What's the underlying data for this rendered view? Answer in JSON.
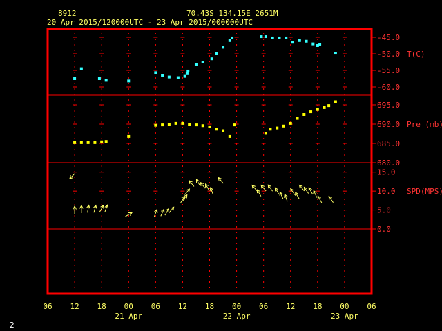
{
  "header": {
    "station_id": "8912",
    "location": "70.43S   134.15E   2651M",
    "time_range": "20 Apr 2015/120000UTC - 23 Apr 2015/000000UTC"
  },
  "page_number": "2",
  "colors": {
    "frame": "#ff0000",
    "text": "#ffff66",
    "axis_text": "#ff3333",
    "temperature": "#33ffff",
    "pressure": "#ffff00",
    "wind": "#ffff66"
  },
  "chart_data": {
    "type": "scatter",
    "x_unit": "hours since 20 Apr 06 UTC",
    "x_ticks": [
      {
        "hour": 0,
        "label": "06"
      },
      {
        "hour": 6,
        "label": "12"
      },
      {
        "hour": 12,
        "label": "18"
      },
      {
        "hour": 18,
        "label": "00"
      },
      {
        "hour": 24,
        "label": "06"
      },
      {
        "hour": 30,
        "label": "12"
      },
      {
        "hour": 36,
        "label": "18"
      },
      {
        "hour": 42,
        "label": "00"
      },
      {
        "hour": 48,
        "label": "06"
      },
      {
        "hour": 54,
        "label": "12"
      },
      {
        "hour": 60,
        "label": "18"
      },
      {
        "hour": 66,
        "label": "00"
      },
      {
        "hour": 72,
        "label": "06"
      }
    ],
    "date_labels": [
      {
        "hour": 18,
        "label": "21 Apr"
      },
      {
        "hour": 42,
        "label": "22 Apr"
      },
      {
        "hour": 66,
        "label": "23 Apr"
      }
    ],
    "panels": [
      {
        "name": "T(C)",
        "ylim": [
          -62.5,
          -42.5
        ],
        "ticks": [
          "-45.0",
          "-50.0",
          "-55.0",
          "-60.0"
        ],
        "tick_values": [
          -45,
          -50,
          -55,
          -60
        ],
        "points": [
          [
            6,
            -57.5
          ],
          [
            7.5,
            -54.5
          ],
          [
            11.5,
            -57.5
          ],
          [
            13,
            -58
          ],
          [
            18,
            -58.2
          ],
          [
            24,
            -55.7
          ],
          [
            25.5,
            -56.5
          ],
          [
            27,
            -57
          ],
          [
            29,
            -57.2
          ],
          [
            30.5,
            -56.8
          ],
          [
            31,
            -56
          ],
          [
            31.2,
            -55.2
          ],
          [
            33,
            -53.2
          ],
          [
            34.5,
            -52.5
          ],
          [
            36.5,
            -51.5
          ],
          [
            37.5,
            -50
          ],
          [
            39,
            -48
          ],
          [
            40.5,
            -46
          ],
          [
            41,
            -45.2
          ],
          [
            47.5,
            -44.8
          ],
          [
            48.5,
            -44.8
          ],
          [
            50,
            -45.2
          ],
          [
            51.5,
            -45.2
          ],
          [
            53,
            -45.2
          ],
          [
            54.5,
            -46.5
          ],
          [
            56,
            -46
          ],
          [
            57.5,
            -46.2
          ],
          [
            59,
            -47
          ],
          [
            60,
            -47.5
          ],
          [
            60.5,
            -47.2
          ],
          [
            64,
            -49.8
          ]
        ]
      },
      {
        "name": "Pre (mb)",
        "ylim": [
          680,
          697.5
        ],
        "ticks": [
          "695.0",
          "690.0",
          "685.0",
          "680.0"
        ],
        "tick_values": [
          695,
          690,
          685,
          680
        ],
        "points": [
          [
            6,
            685.2
          ],
          [
            7.5,
            685.2
          ],
          [
            9,
            685.2
          ],
          [
            10.5,
            685.2
          ],
          [
            12,
            685.4
          ],
          [
            13,
            685.5
          ],
          [
            18,
            686.8
          ],
          [
            24,
            689.7
          ],
          [
            25.5,
            689.8
          ],
          [
            27,
            690.0
          ],
          [
            28.5,
            690.2
          ],
          [
            30,
            690.2
          ],
          [
            31.5,
            690.0
          ],
          [
            33,
            689.8
          ],
          [
            34.5,
            689.6
          ],
          [
            36,
            689.3
          ],
          [
            37.5,
            688.7
          ],
          [
            39,
            688.3
          ],
          [
            40.5,
            686.8
          ],
          [
            41.5,
            689.8
          ],
          [
            48.5,
            687.6
          ],
          [
            49.5,
            688.7
          ],
          [
            51,
            689.0
          ],
          [
            52.5,
            689.5
          ],
          [
            54,
            690.2
          ],
          [
            55.5,
            691.5
          ],
          [
            57,
            692.5
          ],
          [
            58.5,
            693.2
          ],
          [
            60,
            693.8
          ],
          [
            61.5,
            694.3
          ],
          [
            62.5,
            694.8
          ],
          [
            64,
            695.8
          ]
        ]
      },
      {
        "name": "SPD(MPS)",
        "ylim": [
          0,
          17.5
        ],
        "ticks": [
          "15.0",
          "10.0",
          "5.0",
          "0.0"
        ],
        "tick_values": [
          15,
          10,
          5,
          0
        ],
        "arrows": [
          [
            5.5,
            14,
            225
          ],
          [
            6,
            5,
            0
          ],
          [
            7.5,
            5.2,
            0
          ],
          [
            9,
            5.3,
            10
          ],
          [
            10.5,
            5.3,
            15
          ],
          [
            12,
            5.4,
            30
          ],
          [
            13,
            5.4,
            20
          ],
          [
            18,
            3.8,
            60
          ],
          [
            24,
            4.2,
            20
          ],
          [
            25.5,
            4.3,
            25
          ],
          [
            26.5,
            4.5,
            30
          ],
          [
            27.5,
            5.0,
            40
          ],
          [
            30,
            7.8,
            30
          ],
          [
            30.5,
            8.2,
            35
          ],
          [
            31,
            9.8,
            40
          ],
          [
            32,
            12.0,
            320
          ],
          [
            33.5,
            12.2,
            330
          ],
          [
            34.5,
            11.5,
            320
          ],
          [
            35.5,
            11.0,
            330
          ],
          [
            36.5,
            10.0,
            340
          ],
          [
            38.5,
            12.8,
            320
          ],
          [
            46,
            10.8,
            320
          ],
          [
            47,
            9.5,
            330
          ],
          [
            48,
            10.8,
            320
          ],
          [
            49.5,
            10.8,
            325
          ],
          [
            51,
            10.0,
            330
          ],
          [
            52,
            8.8,
            335
          ],
          [
            53,
            8.2,
            340
          ],
          [
            54.5,
            9.8,
            325
          ],
          [
            55.5,
            8.8,
            330
          ],
          [
            56.5,
            10.8,
            320
          ],
          [
            57.5,
            10.2,
            325
          ],
          [
            58.5,
            10.0,
            330
          ],
          [
            59.5,
            9.2,
            335
          ],
          [
            60.5,
            7.8,
            330
          ],
          [
            63,
            7.8,
            325
          ]
        ]
      }
    ]
  }
}
